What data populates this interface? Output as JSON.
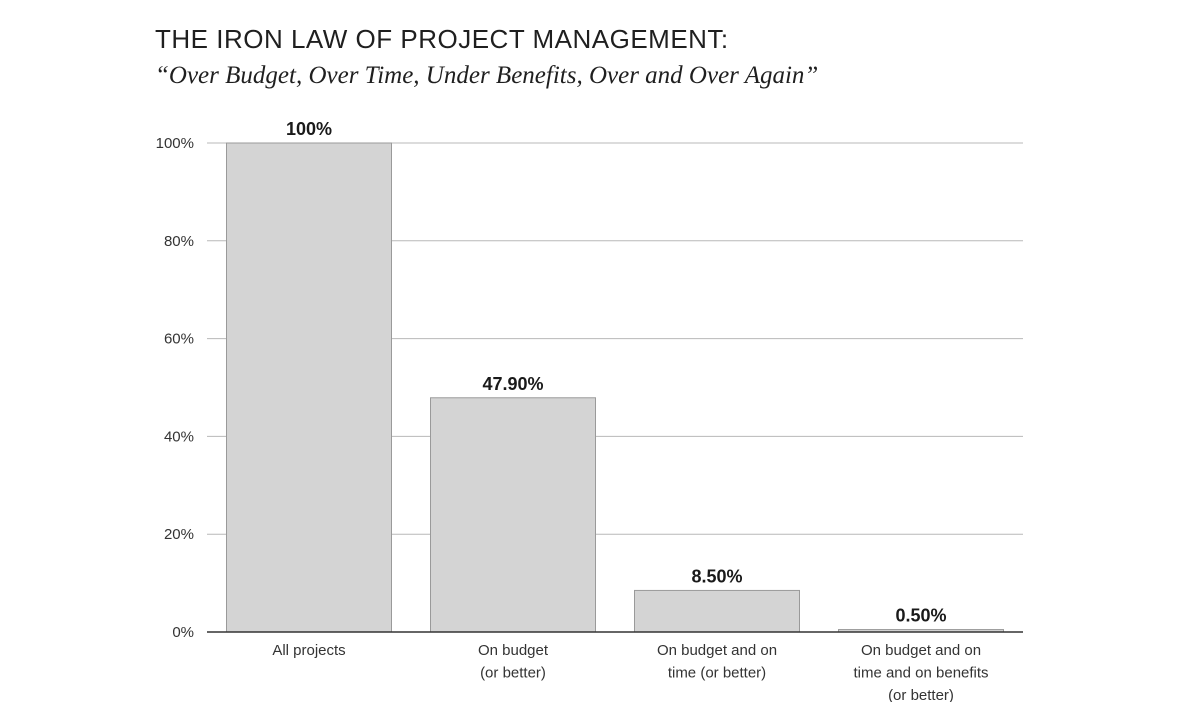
{
  "chart_data": {
    "type": "bar",
    "title": "THE IRON LAW OF PROJECT MANAGEMENT:",
    "subtitle": "“Over Budget, Over Time, Under Benefits, Over and Over Again”",
    "categories": [
      [
        "All projects"
      ],
      [
        "On budget",
        "(or better)"
      ],
      [
        "On budget and on",
        "time (or better)"
      ],
      [
        "On budget and on",
        "time and on benefits",
        "(or better)"
      ]
    ],
    "values": [
      100,
      47.9,
      8.5,
      0.5
    ],
    "data_labels": [
      "100%",
      "47.90%",
      "8.50%",
      "0.50%"
    ],
    "y_ticks": [
      {
        "value": 0,
        "label": "0%"
      },
      {
        "value": 20,
        "label": "20%"
      },
      {
        "value": 40,
        "label": "40%"
      },
      {
        "value": 60,
        "label": "60%"
      },
      {
        "value": 80,
        "label": "80%"
      },
      {
        "value": 100,
        "label": "100%"
      }
    ],
    "ylim": [
      0,
      100
    ],
    "grid": true,
    "colors": {
      "bar": "#d4d4d4",
      "bar_border": "#9a9a9a",
      "grid": "#b8b8b8"
    }
  }
}
